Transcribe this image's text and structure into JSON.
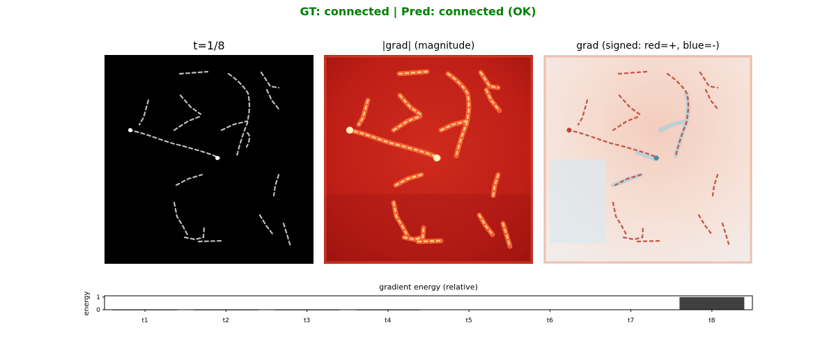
{
  "header": {
    "suptitle": "GT: connected | Pred: connected (OK)",
    "suptitle_color": "#008000"
  },
  "panels": [
    {
      "title": "t=1/8",
      "kind": "grayscale input frame"
    },
    {
      "title": "|grad| (magnitude)",
      "kind": "red magnitude heatmap"
    },
    {
      "title": "grad (signed: red=+, blue=-)",
      "kind": "diverging red-blue heatmap"
    }
  ],
  "colors": {
    "input_bg": "#000000",
    "magnitude_bg": "#c6231b",
    "signed_bg": "#f6e2da",
    "bar": "#404040"
  },
  "chart_data": {
    "type": "bar",
    "title": "gradient energy (relative)",
    "xlabel": "",
    "ylabel": "energy",
    "categories": [
      "t1",
      "t2",
      "t3",
      "t4",
      "t5",
      "t6",
      "t7",
      "t8"
    ],
    "values": [
      0.0,
      0.0,
      0.0,
      0.0,
      0.02,
      0.02,
      0.02,
      1.0
    ],
    "ylim": [
      0,
      1.1
    ],
    "yticks": [
      "0",
      "1"
    ],
    "grid": false
  }
}
